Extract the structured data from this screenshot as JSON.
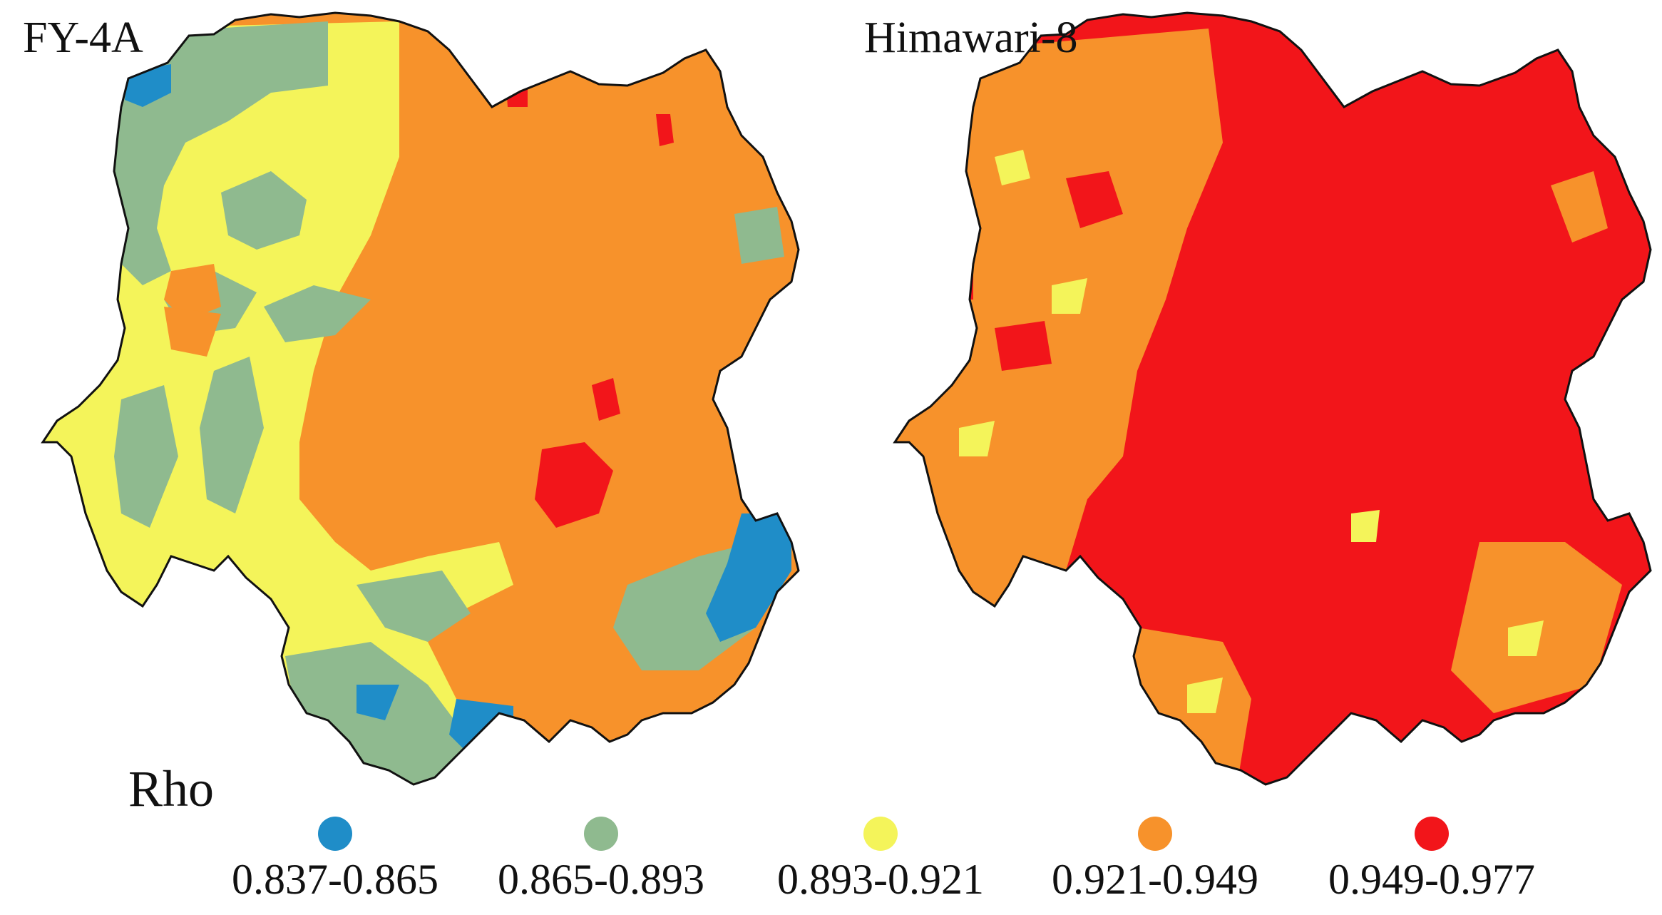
{
  "maps": [
    {
      "title": "FY-4A",
      "dominant_class": 3
    },
    {
      "title": "Himawari-8",
      "dominant_class": 4
    }
  ],
  "legend": {
    "title": "Rho",
    "items": [
      {
        "label": "0.837-0.865",
        "color": "#1f8dc8"
      },
      {
        "label": "0.865-0.893",
        "color": "#8fba8f"
      },
      {
        "label": "0.893-0.921",
        "color": "#f4f45a"
      },
      {
        "label": "0.921-0.949",
        "color": "#f7922b"
      },
      {
        "label": "0.949-0.977",
        "color": "#f2151a"
      }
    ]
  },
  "colors": {
    "border": "#111111"
  }
}
